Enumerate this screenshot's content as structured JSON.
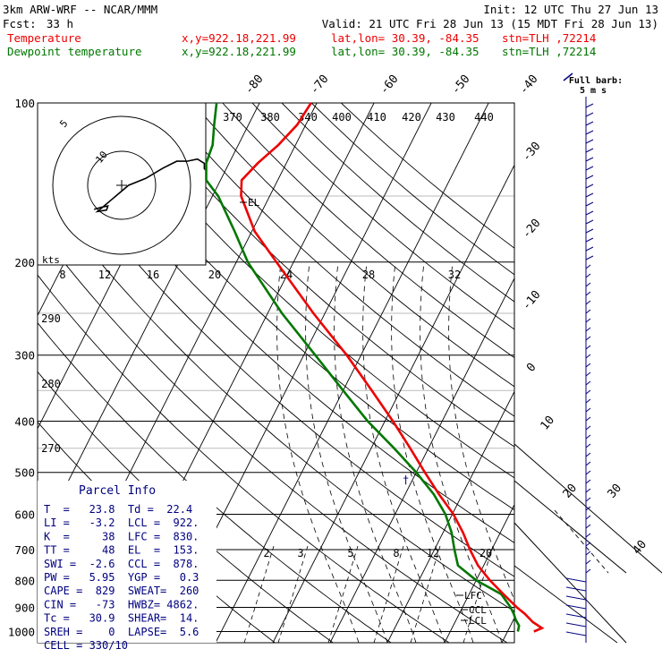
{
  "header": {
    "model": "3km ARW-WRF -- NCAR/MMM",
    "init": "Init: 12 UTC Thu 27 Jun 13",
    "fcst_label": "Fcst:",
    "fcst_value": "33 h",
    "valid": "Valid: 21 UTC Fri 28 Jun 13 (15 MDT Fri 28 Jun 13)",
    "temp_line": {
      "name": "Temperature",
      "xy": "x,y=922.18,221.99",
      "latlon": "lat,lon= 30.39, -84.35",
      "stn": "stn=TLH ,72214"
    },
    "dew_line": {
      "name": "Dewpoint temperature",
      "xy": "x,y=922.18,221.99",
      "latlon": "lat,lon= 30.39, -84.35",
      "stn": "stn=TLH ,72214"
    }
  },
  "colors": {
    "temperature": "#ee0000",
    "dewpoint": "#007700",
    "wind": "#000080",
    "grid": "#000000"
  },
  "chart_data": {
    "type": "line",
    "pressure_levels": [
      100,
      200,
      300,
      400,
      500,
      600,
      700,
      800,
      900,
      1000
    ],
    "extra_isobars": [
      150,
      250,
      350,
      450
    ],
    "isotherm_labels": [
      -80,
      -70,
      -60,
      -50,
      -40,
      -30,
      -20,
      -10,
      0,
      10,
      20,
      30,
      40
    ],
    "theta_labels": [
      "370",
      "380",
      "340",
      "400",
      "410",
      "420",
      "430",
      "440"
    ],
    "theta_labels_left": [
      "290",
      "280",
      "270"
    ],
    "mixing_ratio_labels": [
      "2",
      "3",
      "5",
      "8",
      "12",
      "20"
    ],
    "temperature_profile": [
      {
        "p": 1000,
        "t": 24.6
      },
      {
        "p": 985,
        "t": 25.7
      },
      {
        "p": 960,
        "t": 23.6
      },
      {
        "p": 925,
        "t": 21.4
      },
      {
        "p": 900,
        "t": 19.5
      },
      {
        "p": 850,
        "t": 16.0
      },
      {
        "p": 800,
        "t": 12.4
      },
      {
        "p": 750,
        "t": 9.0
      },
      {
        "p": 700,
        "t": 6.2
      },
      {
        "p": 650,
        "t": 3.5
      },
      {
        "p": 600,
        "t": 0.2
      },
      {
        "p": 550,
        "t": -4.1
      },
      {
        "p": 500,
        "t": -8.5
      },
      {
        "p": 450,
        "t": -13.2
      },
      {
        "p": 400,
        "t": -18.6
      },
      {
        "p": 350,
        "t": -25.0
      },
      {
        "p": 300,
        "t": -32.5
      },
      {
        "p": 250,
        "t": -42.0
      },
      {
        "p": 200,
        "t": -53.0
      },
      {
        "p": 175,
        "t": -59.5
      },
      {
        "p": 150,
        "t": -65.0
      },
      {
        "p": 140,
        "t": -66.3
      },
      {
        "p": 130,
        "t": -65.0
      },
      {
        "p": 120,
        "t": -63.0
      },
      {
        "p": 110,
        "t": -61.5
      },
      {
        "p": 100,
        "t": -61.0
      }
    ],
    "dewpoint_profile": [
      {
        "p": 1000,
        "t": 21.8
      },
      {
        "p": 975,
        "t": 21.5
      },
      {
        "p": 950,
        "t": 20.4
      },
      {
        "p": 925,
        "t": 19.5
      },
      {
        "p": 900,
        "t": 18.4
      },
      {
        "p": 850,
        "t": 15.6
      },
      {
        "p": 800,
        "t": 10.0
      },
      {
        "p": 750,
        "t": 5.5
      },
      {
        "p": 700,
        "t": 3.5
      },
      {
        "p": 650,
        "t": 1.5
      },
      {
        "p": 600,
        "t": -1.2
      },
      {
        "p": 550,
        "t": -5.0
      },
      {
        "p": 500,
        "t": -10.0
      },
      {
        "p": 450,
        "t": -16.0
      },
      {
        "p": 400,
        "t": -23.0
      },
      {
        "p": 350,
        "t": -30.0
      },
      {
        "p": 300,
        "t": -38.0
      },
      {
        "p": 250,
        "t": -47.5
      },
      {
        "p": 200,
        "t": -58.0
      },
      {
        "p": 175,
        "t": -63.0
      },
      {
        "p": 150,
        "t": -69.0
      },
      {
        "p": 140,
        "t": -72.5
      },
      {
        "p": 130,
        "t": -74.0
      },
      {
        "p": 120,
        "t": -74.5
      },
      {
        "p": 110,
        "t": -76.0
      },
      {
        "p": 100,
        "t": -77.5
      }
    ],
    "level_markers": [
      {
        "label": "EL",
        "p": 153
      },
      {
        "label": "LFC",
        "p": 830
      },
      {
        "label": "CCL",
        "p": 878
      },
      {
        "label": "LCL",
        "p": 922
      }
    ],
    "barb_legend": {
      "line1": "Full barb:",
      "line2": "5 m s"
    },
    "hodograph": {
      "units_label": "kts",
      "ring_labels": [
        "5",
        "10"
      ],
      "speed_axis_labels": [
        "8",
        "12",
        "16",
        "20",
        "24",
        "28",
        "32"
      ],
      "trace_kts": [
        [
          -4,
          -3.5
        ],
        [
          -3,
          -3.2
        ],
        [
          -2,
          -3.0
        ],
        [
          -2.2,
          -3.6
        ],
        [
          -3.5,
          -3.8
        ],
        [
          1,
          0
        ],
        [
          3.5,
          1
        ],
        [
          6,
          2.5
        ],
        [
          8,
          3.5
        ],
        [
          9.5,
          3.5
        ],
        [
          11,
          3.8
        ],
        [
          12,
          3.2
        ],
        [
          12,
          2.4
        ],
        [
          13,
          1.6
        ],
        [
          14,
          0.6
        ],
        [
          14,
          -0.2
        ]
      ]
    }
  },
  "parcel_info": {
    "title": "Parcel Info",
    "rows": [
      "T  =   23.8  Td =  22.4",
      "LI =   -3.2  LCL =  922.",
      "K  =     38  LFC =  830.",
      "TT =     48  EL  =  153.",
      "SWI =  -2.6  CCL =  878.",
      "PW =   5.95  YGP =   0.3",
      "CAPE =  829  SWEAT=  260",
      "CIN =   -73  HWBZ= 4862.",
      "Tc =   30.9  SHEAR=  14.",
      "SREH =    0  LAPSE=  5.6",
      "CELL = 330/10"
    ]
  }
}
